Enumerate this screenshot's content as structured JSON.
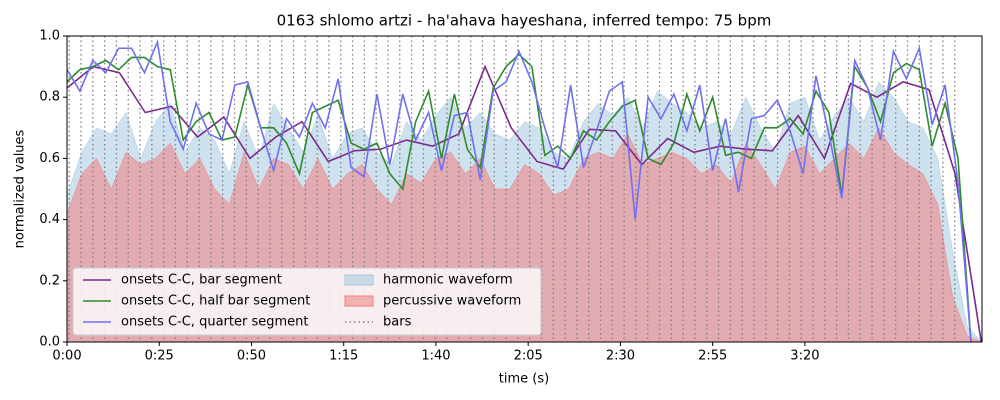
{
  "chart_data": {
    "type": "line",
    "title": "0163 shlomo artzi - ha'ahava hayeshana, inferred tempo: 75 bpm",
    "x_label": "time (s)",
    "y_label": "normalized values",
    "xlim": [
      0,
      248
    ],
    "ylim": [
      0,
      1
    ],
    "xticks": [
      {
        "value": 0,
        "label": "0:00"
      },
      {
        "value": 25,
        "label": "0:25"
      },
      {
        "value": 50,
        "label": "0:50"
      },
      {
        "value": 75,
        "label": "1:15"
      },
      {
        "value": 100,
        "label": "1:40"
      },
      {
        "value": 125,
        "label": "2:05"
      },
      {
        "value": 150,
        "label": "2:30"
      },
      {
        "value": 175,
        "label": "2:55"
      },
      {
        "value": 200,
        "label": "3:20"
      }
    ],
    "yticks": [
      {
        "value": 0,
        "label": "0.0"
      },
      0.2,
      0.4,
      0.6,
      0.8,
      {
        "value": 1,
        "label": "1.0"
      }
    ],
    "legend": "lower left",
    "series": [
      {
        "name": "onsets C-C, bar segment",
        "type": "line",
        "color": "#7b2a8c",
        "x": [
          0,
          7.1,
          14.2,
          21.2,
          28.3,
          35.4,
          42.5,
          49.6,
          56.6,
          63.7,
          70.8,
          77.9,
          85,
          92,
          99.1,
          106.2,
          113.3,
          120.4,
          127.4,
          134.5,
          141.6,
          148.7,
          155.8,
          162.8,
          169.9,
          177,
          184.1,
          191.2,
          198.2,
          205.3,
          212.4,
          219.5,
          226.6,
          233.6,
          240.7,
          247.8
        ],
        "values": [
          0.83,
          0.9,
          0.88,
          0.75,
          0.77,
          0.67,
          0.735,
          0.6,
          0.67,
          0.72,
          0.59,
          0.625,
          0.63,
          0.66,
          0.64,
          0.68,
          0.9,
          0.7,
          0.59,
          0.565,
          0.695,
          0.69,
          0.58,
          0.665,
          0.62,
          0.64,
          0.63,
          0.625,
          0.74,
          0.6,
          0.845,
          0.8,
          0.85,
          0.825,
          0.55,
          0.0
        ]
      },
      {
        "name": "onsets C-C, half bar segment",
        "type": "line",
        "color": "#2e8b2e",
        "x": [
          0,
          3.5,
          7,
          10.5,
          14,
          17.5,
          21,
          24.5,
          28,
          31.5,
          35,
          38.5,
          42,
          45.5,
          49,
          52.5,
          56,
          59.5,
          63,
          66.5,
          70,
          73.5,
          77,
          80.5,
          84,
          87.5,
          91,
          94.5,
          98,
          101.5,
          105,
          108.5,
          112,
          115.5,
          119,
          122.5,
          126,
          129.5,
          133,
          136.5,
          140,
          143.5,
          147,
          150.5,
          154,
          157.5,
          161,
          164.5,
          168,
          171.5,
          175,
          178.5,
          182,
          185.5,
          189,
          192.5,
          196,
          199.5,
          203,
          206.5,
          210,
          213.5,
          217,
          220.5,
          224,
          227.5,
          231,
          234.5,
          238,
          241.5,
          245
        ],
        "values": [
          0.85,
          0.89,
          0.9,
          0.92,
          0.89,
          0.93,
          0.93,
          0.9,
          0.89,
          0.66,
          0.72,
          0.75,
          0.66,
          0.67,
          0.84,
          0.7,
          0.7,
          0.65,
          0.55,
          0.75,
          0.77,
          0.79,
          0.65,
          0.63,
          0.65,
          0.55,
          0.5,
          0.72,
          0.82,
          0.6,
          0.81,
          0.63,
          0.57,
          0.83,
          0.9,
          0.94,
          0.9,
          0.61,
          0.64,
          0.6,
          0.69,
          0.66,
          0.72,
          0.77,
          0.79,
          0.6,
          0.58,
          0.65,
          0.81,
          0.69,
          0.8,
          0.61,
          0.62,
          0.6,
          0.7,
          0.7,
          0.73,
          0.68,
          0.82,
          0.75,
          0.48,
          0.9,
          0.83,
          0.72,
          0.88,
          0.91,
          0.89,
          0.64,
          0.78,
          0.6,
          0.0
        ]
      },
      {
        "name": "onsets C-C, quarter segment",
        "type": "line",
        "color": "#7070f0",
        "x": [
          0,
          3.5,
          7,
          10.5,
          14,
          17.5,
          21,
          24.5,
          28,
          31.5,
          35,
          38.5,
          42,
          45.5,
          49,
          52.5,
          56,
          59.5,
          63,
          66.5,
          70,
          73.5,
          77,
          80.5,
          84,
          87.5,
          91,
          94.5,
          98,
          101.5,
          105,
          108.5,
          112,
          115.5,
          119,
          122.5,
          126,
          129.5,
          133,
          136.5,
          140,
          143.5,
          147,
          150.5,
          154,
          157.5,
          161,
          164.5,
          168,
          171.5,
          175,
          178.5,
          182,
          185.5,
          189,
          192.5,
          196,
          199.5,
          203,
          206.5,
          210,
          213.5,
          217,
          220.5,
          224,
          227.5,
          231,
          234.5,
          238,
          241.5,
          245
        ],
        "values": [
          0.89,
          0.82,
          0.92,
          0.88,
          0.96,
          0.96,
          0.88,
          0.98,
          0.72,
          0.63,
          0.78,
          0.68,
          0.66,
          0.84,
          0.85,
          0.7,
          0.56,
          0.73,
          0.67,
          0.78,
          0.7,
          0.86,
          0.57,
          0.54,
          0.81,
          0.58,
          0.81,
          0.66,
          0.75,
          0.56,
          0.74,
          0.75,
          0.53,
          0.82,
          0.85,
          0.95,
          0.85,
          0.7,
          0.57,
          0.84,
          0.57,
          0.69,
          0.82,
          0.85,
          0.4,
          0.8,
          0.73,
          0.81,
          0.69,
          0.84,
          0.56,
          0.73,
          0.49,
          0.73,
          0.74,
          0.79,
          0.69,
          0.55,
          0.87,
          0.68,
          0.47,
          0.92,
          0.83,
          0.66,
          0.95,
          0.86,
          0.96,
          0.71,
          0.84,
          0.52,
          0.0
        ]
      },
      {
        "name": "harmonic waveform",
        "type": "area",
        "color": "#a6c8e0",
        "x": [
          0,
          4,
          8,
          12,
          16,
          20,
          24,
          28,
          32,
          36,
          40,
          44,
          48,
          52,
          56,
          60,
          64,
          68,
          72,
          76,
          80,
          84,
          88,
          92,
          96,
          100,
          104,
          108,
          112,
          116,
          120,
          124,
          128,
          132,
          136,
          140,
          144,
          148,
          152,
          156,
          160,
          164,
          168,
          172,
          176,
          180,
          184,
          188,
          192,
          196,
          200,
          204,
          208,
          212,
          216,
          220,
          224,
          228,
          232,
          236,
          240,
          244,
          248
        ],
        "values": [
          0.48,
          0.62,
          0.7,
          0.68,
          0.75,
          0.6,
          0.72,
          0.78,
          0.62,
          0.7,
          0.66,
          0.55,
          0.72,
          0.6,
          0.78,
          0.7,
          0.62,
          0.74,
          0.6,
          0.68,
          0.7,
          0.62,
          0.58,
          0.72,
          0.66,
          0.74,
          0.8,
          0.7,
          0.75,
          0.68,
          0.66,
          0.72,
          0.7,
          0.62,
          0.6,
          0.72,
          0.78,
          0.74,
          0.8,
          0.7,
          0.82,
          0.78,
          0.75,
          0.7,
          0.72,
          0.68,
          0.8,
          0.7,
          0.62,
          0.78,
          0.8,
          0.66,
          0.74,
          0.8,
          0.72,
          0.85,
          0.8,
          0.72,
          0.7,
          0.6,
          0.3,
          0.05,
          0.0
        ]
      },
      {
        "name": "percussive waveform",
        "type": "area",
        "color": "#f08080",
        "x": [
          0,
          4,
          8,
          12,
          16,
          20,
          24,
          28,
          32,
          36,
          40,
          44,
          48,
          52,
          56,
          60,
          64,
          68,
          72,
          76,
          80,
          84,
          88,
          92,
          96,
          100,
          104,
          108,
          112,
          116,
          120,
          124,
          128,
          132,
          136,
          140,
          144,
          148,
          152,
          156,
          160,
          164,
          168,
          172,
          176,
          180,
          184,
          188,
          192,
          196,
          200,
          204,
          208,
          212,
          216,
          220,
          224,
          228,
          232,
          236,
          240,
          244,
          248
        ],
        "values": [
          0.42,
          0.55,
          0.6,
          0.5,
          0.62,
          0.58,
          0.6,
          0.65,
          0.55,
          0.6,
          0.5,
          0.45,
          0.62,
          0.5,
          0.6,
          0.58,
          0.5,
          0.6,
          0.5,
          0.55,
          0.58,
          0.5,
          0.45,
          0.55,
          0.52,
          0.6,
          0.62,
          0.55,
          0.6,
          0.5,
          0.5,
          0.58,
          0.55,
          0.48,
          0.5,
          0.6,
          0.62,
          0.6,
          0.68,
          0.58,
          0.6,
          0.62,
          0.6,
          0.55,
          0.58,
          0.52,
          0.65,
          0.58,
          0.5,
          0.62,
          0.64,
          0.55,
          0.6,
          0.65,
          0.6,
          0.7,
          0.62,
          0.58,
          0.55,
          0.45,
          0.15,
          0.02,
          0.0
        ]
      },
      {
        "name": "bars",
        "type": "vlines",
        "color": "#808080",
        "x": [
          0.6,
          3.8,
          7,
          10.2,
          13.4,
          16.6,
          19.8,
          23,
          26.2,
          29.4,
          32.6,
          35.8,
          39,
          42.2,
          45.4,
          48.6,
          51.8,
          55,
          58.2,
          61.4,
          64.6,
          67.8,
          71,
          74.2,
          77.4,
          80.6,
          83.8,
          87,
          90.2,
          93.4,
          96.6,
          99.8,
          103,
          106.2,
          109.4,
          112.6,
          115.8,
          119,
          122.2,
          125.4,
          128.6,
          131.8,
          135,
          138.2,
          141.4,
          144.6,
          147.8,
          151,
          154.2,
          157.4,
          160.6,
          163.8,
          167,
          170.2,
          173.4,
          176.6,
          179.8,
          183,
          186.2,
          189.4,
          192.6,
          195.8,
          199,
          202.2,
          205.4,
          208.6,
          211.8,
          215,
          218.2,
          221.4,
          224.6,
          227.8,
          231,
          234.2,
          237.4,
          240.6
        ]
      }
    ]
  }
}
